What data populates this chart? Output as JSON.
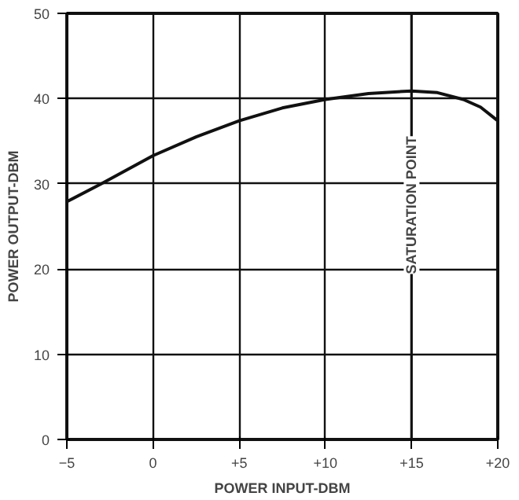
{
  "chart_data": {
    "type": "line",
    "xlabel": "POWER INPUT-DBM",
    "ylabel": "POWER OUTPUT-DBM",
    "x": [
      -5,
      -3,
      0,
      2.5,
      5,
      7.5,
      10,
      12.5,
      15,
      16.5,
      18,
      19,
      20
    ],
    "series": [
      {
        "color": "#111111",
        "values": [
          27.9,
          30,
          33.3,
          35.5,
          37.4,
          38.9,
          39.9,
          40.6,
          40.9,
          40.7,
          39.9,
          39,
          37.4
        ]
      }
    ],
    "xlim": [
      -5,
      20
    ],
    "ylim": [
      0,
      50
    ],
    "xticks": [
      -5,
      0,
      {
        "value": 5,
        "label": "+5"
      },
      {
        "value": 10,
        "label": "+10"
      },
      {
        "value": 15,
        "label": "+15"
      },
      {
        "value": 20,
        "label": "+20"
      }
    ],
    "yticks": [
      0,
      10,
      20,
      30,
      40,
      50
    ],
    "ref_lines": [
      {
        "axis": "x",
        "value": 15,
        "label": "SATURATION POINT",
        "color": "#111111"
      }
    ],
    "grid": true,
    "line_style": "solid",
    "marker": "none"
  }
}
